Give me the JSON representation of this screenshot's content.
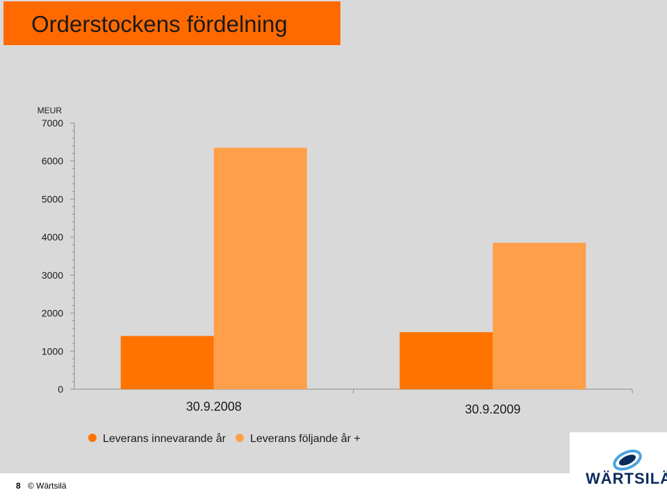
{
  "title": "Orderstockens fördelning",
  "footer": {
    "page_number": "8",
    "copyright": "© Wärtsilä"
  },
  "logo": {
    "text": "WÄRTSILÄ"
  },
  "colors": {
    "title_bg": "#ff6a00",
    "series_current": "#ff7300",
    "series_following": "#ff9f4a",
    "logo_navy": "#0a2a5c",
    "logo_blue": "#4aa3df"
  },
  "chart_data": {
    "type": "bar",
    "unit_label": "MEUR",
    "categories": [
      "30.9.2008",
      "30.9.2009"
    ],
    "series": [
      {
        "name": "Leverans innevarande år",
        "values": [
          1400,
          1500
        ]
      },
      {
        "name": "Leverans följande år +",
        "values": [
          6350,
          3850
        ]
      }
    ],
    "ylim": [
      0,
      7000
    ],
    "yticks": [
      "0",
      "1000",
      "2000",
      "3000",
      "4000",
      "5000",
      "6000",
      "7000"
    ],
    "grid": false,
    "legend": "bottom"
  }
}
